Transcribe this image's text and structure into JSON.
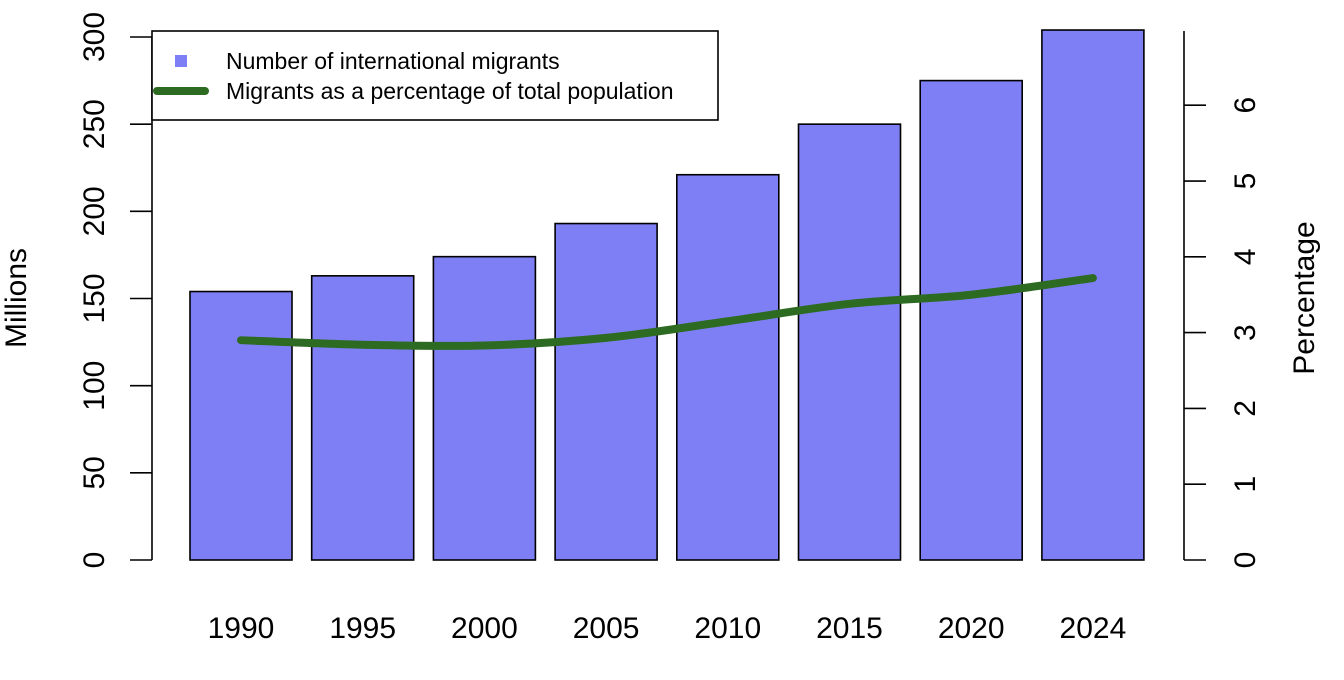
{
  "chart_data": {
    "type": "bar",
    "categories": [
      "1990",
      "1995",
      "2000",
      "2005",
      "2010",
      "2015",
      "2020",
      "2024"
    ],
    "series": [
      {
        "name": "Number of international migrants",
        "type": "bar",
        "axis": "left",
        "color": "#7f7ff5",
        "values": [
          154,
          163,
          174,
          193,
          221,
          250,
          275,
          304
        ]
      },
      {
        "name": "Migrants as a percentage of total population",
        "type": "line",
        "axis": "right",
        "color": "#2e6b22",
        "values": [
          2.9,
          2.84,
          2.83,
          2.93,
          3.15,
          3.38,
          3.5,
          3.72
        ]
      }
    ],
    "ylabel": "Millions",
    "ylabel_right": "Percentage",
    "ylim": [
      0,
      300
    ],
    "yticks": [
      "0",
      "50",
      "100",
      "150",
      "200",
      "250",
      "300"
    ],
    "ylim_right": [
      0,
      6.9
    ],
    "yticks_right": [
      "0",
      "1",
      "2",
      "3",
      "4",
      "5",
      "6"
    ],
    "legend_position": "top-left",
    "grid": false
  }
}
